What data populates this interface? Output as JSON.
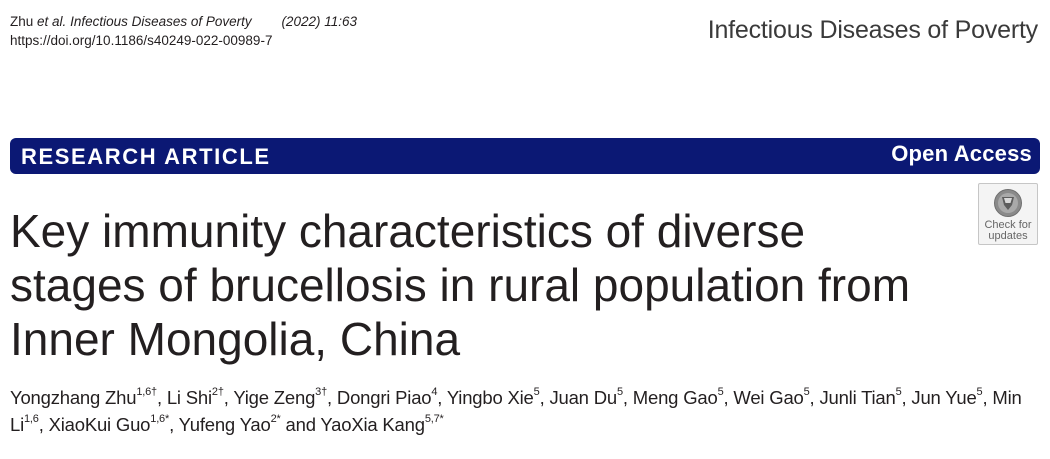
{
  "citation": {
    "author": "Zhu",
    "etal": "et al.",
    "journal": "Infectious Diseases of Poverty",
    "year_vol": "(2022) 11:63",
    "doi": "https://doi.org/10.1186/s40249-022-00989-7"
  },
  "journal_name": "Infectious Diseases of Poverty",
  "banner": {
    "article_type": "RESEARCH ARTICLE",
    "access": "Open Access",
    "color": "#0b1874"
  },
  "check_updates": {
    "line1": "Check for",
    "line2": "updates"
  },
  "title": "Key immunity characteristics of diverse stages of brucellosis in rural population from Inner Mongolia, China",
  "authors": [
    {
      "name": "Yongzhang Zhu",
      "sup": "1,6†",
      "sep": ", "
    },
    {
      "name": "Li Shi",
      "sup": "2†",
      "sep": ", "
    },
    {
      "name": "Yige Zeng",
      "sup": "3†",
      "sep": ", "
    },
    {
      "name": "Dongri Piao",
      "sup": "4",
      "sep": ", "
    },
    {
      "name": "Yingbo Xie",
      "sup": "5",
      "sep": ", "
    },
    {
      "name": "Juan Du",
      "sup": "5",
      "sep": ", "
    },
    {
      "name": "Meng Gao",
      "sup": "5",
      "sep": ", "
    },
    {
      "name": "Wei Gao",
      "sup": "5",
      "sep": ", "
    },
    {
      "name": "Junli Tian",
      "sup": "5",
      "sep": ", "
    },
    {
      "name": "Jun Yue",
      "sup": "5",
      "sep": ", "
    },
    {
      "name": "Min Li",
      "sup": "1,6",
      "sep": ", "
    },
    {
      "name": "XiaoKui Guo",
      "sup": "1,6*",
      "sep": ", "
    },
    {
      "name": "Yufeng Yao",
      "sup": "2*",
      "sep": " and "
    },
    {
      "name": "YaoXia Kang",
      "sup": "5,7*",
      "sep": ""
    }
  ]
}
